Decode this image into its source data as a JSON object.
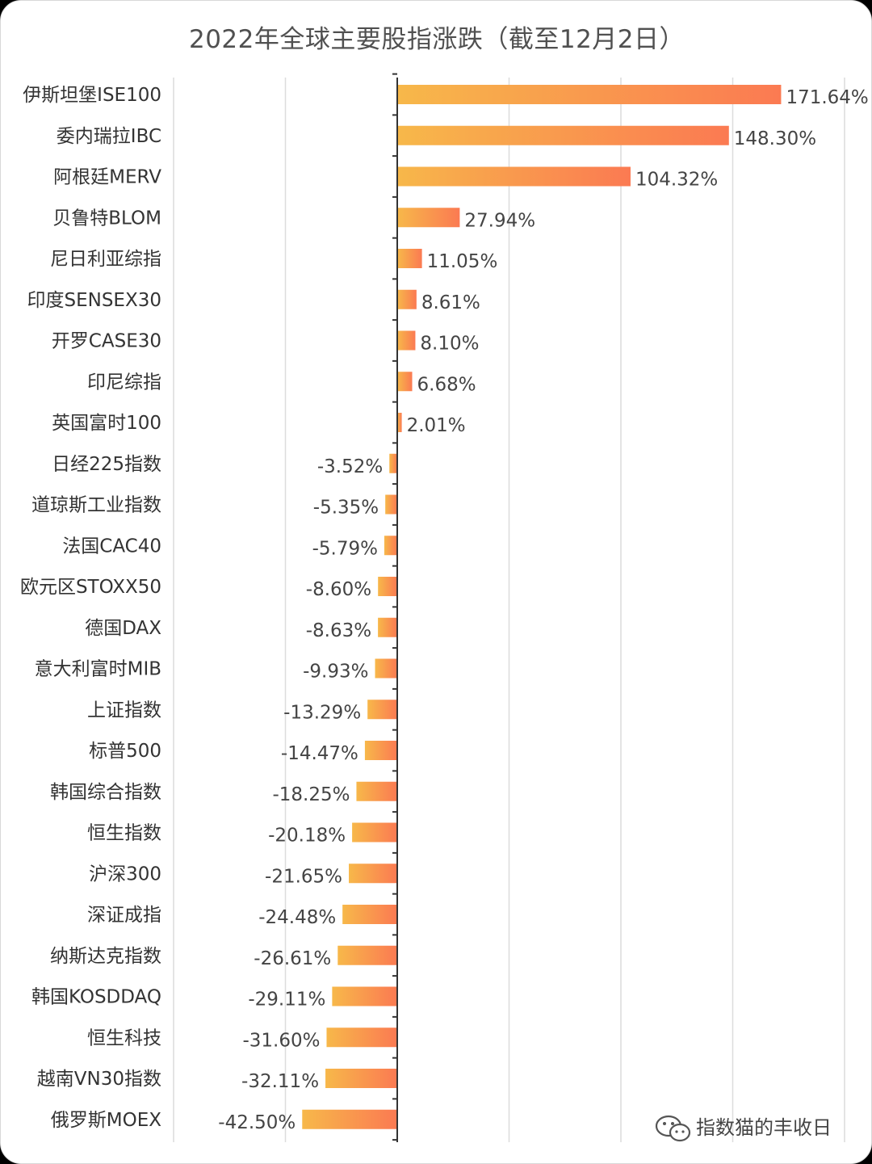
{
  "chart_data": {
    "type": "bar",
    "orientation": "horizontal",
    "title": "2022年全球主要股指涨跌（截至12月2日）",
    "categories": [
      "伊斯坦堡ISE100",
      "委内瑞拉IBC",
      "阿根廷MERV",
      "贝鲁特BLOM",
      "尼日利亚综指",
      "印度SENSEX30",
      "开罗CASE30",
      "印尼综指",
      "英国富时100",
      "日经225指数",
      "道琼斯工业指数",
      "法国CAC40",
      "欧元区STOXX50",
      "德国DAX",
      "意大利富时MIB",
      "上证指数",
      "标普500",
      "韩国综合指数",
      "恒生指数",
      "沪深300",
      "深证成指",
      "纳斯达克指数",
      "韩国KOSDDAQ",
      "恒生科技",
      "越南VN30指数",
      "俄罗斯MOEX"
    ],
    "values": [
      171.64,
      148.3,
      104.32,
      27.94,
      11.05,
      8.61,
      8.1,
      6.68,
      2.01,
      -3.52,
      -5.35,
      -5.79,
      -8.6,
      -8.63,
      -9.93,
      -13.29,
      -14.47,
      -18.25,
      -20.18,
      -21.65,
      -24.48,
      -26.61,
      -29.11,
      -31.6,
      -32.11,
      -42.5
    ],
    "value_labels": [
      "171.64%",
      "148.30%",
      "104.32%",
      "27.94%",
      "11.05%",
      "8.61%",
      "8.10%",
      "6.68%",
      "2.01%",
      "-3.52%",
      "-5.35%",
      "-5.79%",
      "-8.60%",
      "-8.63%",
      "-9.93%",
      "-13.29%",
      "-14.47%",
      "-18.25%",
      "-20.18%",
      "-21.65%",
      "-24.48%",
      "-26.61%",
      "-29.11%",
      "-31.60%",
      "-32.11%",
      "-42.50%"
    ],
    "xlim": [
      -100,
      200
    ],
    "grid": true,
    "legend": "none",
    "colors": {
      "bar_start": "#f7b84a",
      "bar_end": "#fb7a52",
      "grid": "#dcdcdc",
      "axis": "#333333"
    }
  },
  "watermark": {
    "icon": "wechat-icon",
    "text": "指数猫的丰收日"
  }
}
